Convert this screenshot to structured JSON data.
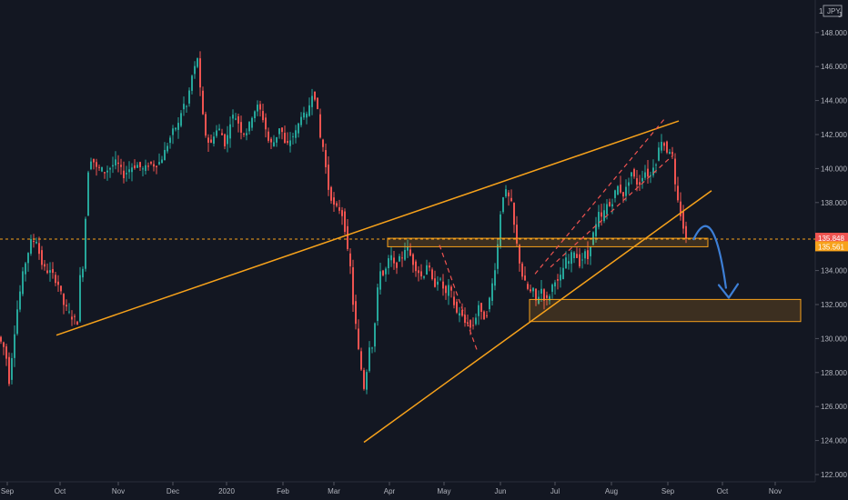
{
  "symbol": {
    "currency": "JPY",
    "scale_prefix": "1",
    "scale_suffix": "J"
  },
  "price_tags": [
    {
      "value": 135.848,
      "label": "135.848",
      "color": "#ef5350"
    },
    {
      "value": 135.561,
      "label": "135.561",
      "color": "#f7a21b"
    }
  ],
  "colors": {
    "background": "#131722",
    "up": "#26a69a",
    "down": "#ef5350",
    "trendline": "#f7a21b",
    "zone_fill": "#f7a21b",
    "projection": "#3d7fd6",
    "grid": "#1e222d",
    "axis_text": "#b2b5be"
  },
  "chart_data": {
    "type": "candlestick",
    "title": "",
    "xlabel": "",
    "ylabel": "",
    "ylim": [
      121.8,
      150.6
    ],
    "y_ticks": [
      "122.000",
      "124.000",
      "126.000",
      "128.000",
      "130.000",
      "132.000",
      "134.000",
      "136.000",
      "138.000",
      "140.000",
      "142.000",
      "144.000",
      "146.000",
      "148.000"
    ],
    "x_ticks": [
      "Sep",
      "Oct",
      "Nov",
      "Dec",
      "2020",
      "Feb",
      "Mar",
      "Apr",
      "May",
      "Jun",
      "Jul",
      "Aug",
      "Sep",
      "Oct",
      "Nov"
    ],
    "price_path": [
      [
        0,
        130.1
      ],
      [
        8,
        129.3
      ],
      [
        12,
        127.5
      ],
      [
        14,
        128.5
      ],
      [
        20,
        131.4
      ],
      [
        28,
        134.1
      ],
      [
        36,
        135.7
      ],
      [
        42,
        135.8
      ],
      [
        47,
        134.5
      ],
      [
        52,
        134.0
      ],
      [
        58,
        133.9
      ],
      [
        66,
        133.2
      ],
      [
        72,
        132.0
      ],
      [
        80,
        131.3
      ],
      [
        87,
        131.0
      ],
      [
        90,
        133.6
      ],
      [
        94,
        134.5
      ],
      [
        98,
        139.7
      ],
      [
        103,
        140.8
      ],
      [
        107,
        140.0
      ],
      [
        112,
        140.0
      ],
      [
        117,
        139.8
      ],
      [
        124,
        140.1
      ],
      [
        130,
        140.4
      ],
      [
        138,
        139.6
      ],
      [
        146,
        140.1
      ],
      [
        153,
        140.2
      ],
      [
        160,
        139.9
      ],
      [
        166,
        140.3
      ],
      [
        172,
        140.2
      ],
      [
        178,
        140.4
      ],
      [
        183,
        141.0
      ],
      [
        188,
        141.7
      ],
      [
        193,
        142.3
      ],
      [
        198,
        142.6
      ],
      [
        203,
        143.8
      ],
      [
        208,
        143.6
      ],
      [
        212,
        145.5
      ],
      [
        215,
        145.3
      ],
      [
        218,
        147.2
      ],
      [
        221,
        145.2
      ],
      [
        224,
        143.4
      ],
      [
        228,
        142.0
      ],
      [
        233,
        141.3
      ],
      [
        238,
        142.2
      ],
      [
        244,
        142.3
      ],
      [
        250,
        141.3
      ],
      [
        256,
        143.1
      ],
      [
        262,
        143.0
      ],
      [
        268,
        142.1
      ],
      [
        274,
        142.2
      ],
      [
        280,
        143.3
      ],
      [
        286,
        143.7
      ],
      [
        292,
        142.8
      ],
      [
        298,
        141.4
      ],
      [
        304,
        141.6
      ],
      [
        310,
        142.6
      ],
      [
        316,
        141.2
      ],
      [
        322,
        141.8
      ],
      [
        328,
        142.2
      ],
      [
        334,
        143.4
      ],
      [
        338,
        142.8
      ],
      [
        343,
        144.0
      ],
      [
        346,
        144.7
      ],
      [
        350,
        143.8
      ],
      [
        354,
        141.8
      ],
      [
        358,
        141.1
      ],
      [
        362,
        139.0
      ],
      [
        366,
        138.3
      ],
      [
        370,
        137.6
      ],
      [
        374,
        137.7
      ],
      [
        378,
        137.3
      ],
      [
        382,
        136.2
      ],
      [
        385,
        134.5
      ],
      [
        388,
        134.0
      ],
      [
        391,
        131.1
      ],
      [
        394,
        130.6
      ],
      [
        397,
        128.6
      ],
      [
        400,
        128.0
      ],
      [
        403,
        126.7
      ],
      [
        406,
        128.9
      ],
      [
        409,
        130.0
      ],
      [
        412,
        129.4
      ],
      [
        416,
        132.4
      ],
      [
        420,
        134.1
      ],
      [
        424,
        133.6
      ],
      [
        428,
        134.5
      ],
      [
        432,
        134.8
      ],
      [
        436,
        134.1
      ],
      [
        440,
        134.6
      ],
      [
        444,
        134.8
      ],
      [
        448,
        135.5
      ],
      [
        452,
        135.0
      ],
      [
        455,
        134.6
      ],
      [
        458,
        134.2
      ],
      [
        461,
        134.1
      ],
      [
        464,
        133.6
      ],
      [
        468,
        133.8
      ],
      [
        472,
        134.6
      ],
      [
        476,
        133.4
      ],
      [
        480,
        133.2
      ],
      [
        484,
        133.6
      ],
      [
        488,
        133.1
      ],
      [
        492,
        132.6
      ],
      [
        496,
        133.1
      ],
      [
        500,
        132.2
      ],
      [
        504,
        131.5
      ],
      [
        508,
        131.6
      ],
      [
        512,
        130.9
      ],
      [
        516,
        131.0
      ],
      [
        520,
        130.5
      ],
      [
        524,
        131.1
      ],
      [
        528,
        132.0
      ],
      [
        532,
        131.2
      ],
      [
        536,
        131.3
      ],
      [
        540,
        132.3
      ],
      [
        544,
        133.5
      ],
      [
        548,
        134.9
      ],
      [
        552,
        137.4
      ],
      [
        556,
        138.8
      ],
      [
        560,
        138.4
      ],
      [
        564,
        137.9
      ],
      [
        568,
        136.2
      ],
      [
        572,
        134.8
      ],
      [
        576,
        133.7
      ],
      [
        580,
        133.1
      ],
      [
        584,
        132.7
      ],
      [
        588,
        132.8
      ],
      [
        592,
        132.0
      ],
      [
        596,
        133.1
      ],
      [
        600,
        132.4
      ],
      [
        604,
        132.2
      ],
      [
        608,
        133.0
      ],
      [
        612,
        133.5
      ],
      [
        616,
        133.2
      ],
      [
        620,
        134.0
      ],
      [
        624,
        134.6
      ],
      [
        628,
        134.5
      ],
      [
        632,
        135.3
      ],
      [
        636,
        134.8
      ],
      [
        640,
        134.3
      ],
      [
        644,
        135.1
      ],
      [
        648,
        134.7
      ],
      [
        652,
        135.9
      ],
      [
        656,
        136.4
      ],
      [
        660,
        137.3
      ],
      [
        664,
        137.0
      ],
      [
        668,
        137.9
      ],
      [
        672,
        137.8
      ],
      [
        676,
        138.2
      ],
      [
        680,
        139.0
      ],
      [
        684,
        138.7
      ],
      [
        688,
        138.4
      ],
      [
        692,
        139.2
      ],
      [
        696,
        139.8
      ],
      [
        700,
        139.3
      ],
      [
        704,
        139.0
      ],
      [
        708,
        139.6
      ],
      [
        712,
        139.9
      ],
      [
        716,
        139.4
      ],
      [
        720,
        140.2
      ],
      [
        724,
        140.5
      ],
      [
        728,
        141.8
      ],
      [
        732,
        141.4
      ],
      [
        736,
        140.9
      ],
      [
        740,
        141.3
      ],
      [
        744,
        138.9
      ],
      [
        748,
        137.7
      ],
      [
        752,
        136.9
      ],
      [
        755,
        135.8
      ]
    ],
    "trendlines": [
      {
        "from": [
          "Oct",
          130.2
        ],
        "to": [
          "Sep",
          142.8
        ]
      },
      {
        "from": [
          "Mar",
          123.9
        ],
        "to": [
          "Sep",
          138.7
        ]
      }
    ],
    "channels": [
      {
        "from": [
          "May",
          135.5
        ],
        "to": [
          "May",
          129.2
        ]
      },
      {
        "from": [
          "Jun",
          133.8
        ],
        "to": [
          "Sep",
          142.9
        ]
      },
      {
        "from": [
          "Jul",
          134.2
        ],
        "to": [
          "Sep",
          140.8
        ]
      }
    ],
    "zones": [
      {
        "from_price": 135.4,
        "to_price": 135.9
      },
      {
        "from_price": 131.0,
        "to_price": 132.3
      }
    ],
    "horizontal_level": 135.848,
    "projection": {
      "from_price": 135.8,
      "peak_price": 137.6,
      "to_price": 132.4
    }
  }
}
